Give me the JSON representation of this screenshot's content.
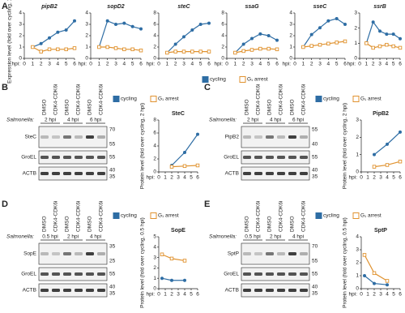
{
  "panels": [
    "A",
    "B",
    "C",
    "D",
    "E"
  ],
  "chart_data": [
    {
      "type": "line",
      "title": "pipB2",
      "ylabel": "Expression level (fold over cycling, 1 hpi)",
      "xlabel": "hpi:",
      "legend": "top",
      "x": [
        1,
        2,
        3,
        4,
        5,
        6
      ],
      "xlim": [
        0,
        6
      ],
      "xticks": [
        0,
        1,
        2,
        3,
        4,
        5,
        6
      ],
      "ylim": [
        0,
        4
      ],
      "yticks": [
        0,
        1,
        2,
        3,
        4
      ],
      "series": [
        {
          "name": "cycling",
          "color": "#2e6da4",
          "values": [
            1,
            1.3,
            1.8,
            2.3,
            2.5,
            3.3
          ]
        },
        {
          "name": "G₁ arrest",
          "color": "#e0922f",
          "values": [
            1,
            0.6,
            0.8,
            0.8,
            0.8,
            0.9
          ]
        }
      ]
    },
    {
      "type": "line",
      "title": "sopD2",
      "xlabel": "hpi:",
      "x": [
        1,
        2,
        3,
        4,
        5,
        6
      ],
      "xlim": [
        0,
        6
      ],
      "xticks": [
        0,
        1,
        2,
        3,
        4,
        5,
        6
      ],
      "ylim": [
        0,
        4
      ],
      "yticks": [
        0,
        1,
        2,
        3,
        4
      ],
      "series": [
        {
          "color": "#2e6da4",
          "values": [
            1,
            3.3,
            3.0,
            3.1,
            2.8,
            2.6
          ]
        },
        {
          "color": "#e0922f",
          "values": [
            1,
            1.0,
            0.9,
            0.8,
            0.8,
            0.7
          ]
        }
      ]
    },
    {
      "type": "line",
      "title": "steC",
      "xlabel": "hpi:",
      "x": [
        1,
        2,
        3,
        4,
        5,
        6
      ],
      "xlim": [
        0,
        6
      ],
      "xticks": [
        0,
        1,
        2,
        3,
        4,
        5,
        6
      ],
      "ylim": [
        0,
        8
      ],
      "yticks": [
        0,
        2,
        4,
        6,
        8
      ],
      "series": [
        {
          "color": "#2e6da4",
          "values": [
            1,
            2.5,
            3.8,
            5.0,
            6.0,
            6.2
          ]
        },
        {
          "color": "#e0922f",
          "values": [
            1,
            1.2,
            1.2,
            1.2,
            1.2,
            1.2
          ]
        }
      ]
    },
    {
      "type": "line",
      "title": "ssaG",
      "xlabel": "hpi:",
      "x": [
        1,
        2,
        3,
        4,
        5,
        6
      ],
      "xlim": [
        0,
        6
      ],
      "xticks": [
        0,
        1,
        2,
        3,
        4,
        5,
        6
      ],
      "ylim": [
        0,
        8
      ],
      "yticks": [
        0,
        2,
        4,
        6,
        8
      ],
      "series": [
        {
          "color": "#2e6da4",
          "values": [
            1,
            2.5,
            3.5,
            4.3,
            4.0,
            3.2
          ]
        },
        {
          "color": "#e0922f",
          "values": [
            1,
            1.3,
            1.5,
            1.7,
            1.7,
            1.6
          ]
        }
      ]
    },
    {
      "type": "line",
      "title": "sseC",
      "xlabel": "hpi:",
      "x": [
        1,
        2,
        3,
        4,
        5,
        6
      ],
      "xlim": [
        0,
        6
      ],
      "xticks": [
        0,
        1,
        2,
        3,
        4,
        5,
        6
      ],
      "ylim": [
        0,
        4
      ],
      "yticks": [
        0,
        1,
        2,
        3,
        4
      ],
      "series": [
        {
          "color": "#2e6da4",
          "values": [
            1,
            2.1,
            2.7,
            3.3,
            3.5,
            3.0
          ]
        },
        {
          "color": "#e0922f",
          "values": [
            1,
            1.1,
            1.2,
            1.3,
            1.4,
            1.5
          ]
        }
      ]
    },
    {
      "type": "line",
      "title": "ssrB",
      "xlabel": "hpi:",
      "x": [
        1,
        2,
        3,
        4,
        5,
        6
      ],
      "xlim": [
        0,
        6
      ],
      "xticks": [
        0,
        1,
        2,
        3,
        4,
        5,
        6
      ],
      "ylim": [
        0,
        3
      ],
      "yticks": [
        0,
        1,
        2,
        3
      ],
      "series": [
        {
          "color": "#2e6da4",
          "values": [
            1,
            2.4,
            1.8,
            1.6,
            1.6,
            1.3
          ]
        },
        {
          "color": "#e0922f",
          "values": [
            1,
            0.7,
            0.8,
            0.9,
            0.8,
            0.7
          ]
        }
      ]
    },
    {
      "type": "line",
      "title": "SteC",
      "ylabel": "Protein level (fold over cycling, 2 hpi)",
      "xlabel": "hpi:",
      "legend": "top",
      "x": [
        2,
        4,
        6
      ],
      "xlim": [
        0,
        6
      ],
      "xticks": [
        0,
        1,
        2,
        3,
        4,
        5,
        6
      ],
      "ylim": [
        0,
        8
      ],
      "yticks": [
        0,
        2,
        4,
        6,
        8
      ],
      "series": [
        {
          "name": "cycling",
          "color": "#2e6da4",
          "values": [
            1,
            3,
            5.8
          ]
        },
        {
          "name": "G₁ arrest",
          "color": "#e0922f",
          "values": [
            0.8,
            0.9,
            1.0
          ]
        }
      ]
    },
    {
      "type": "line",
      "title": "PipB2",
      "ylabel": "Protein level (fold over cycling, 2 hpi)",
      "xlabel": "hpi:",
      "legend": "top",
      "x": [
        2,
        4,
        6
      ],
      "xlim": [
        0,
        6
      ],
      "xticks": [
        0,
        1,
        2,
        3,
        4,
        5,
        6
      ],
      "ylim": [
        0,
        3
      ],
      "yticks": [
        0,
        1,
        2,
        3
      ],
      "series": [
        {
          "name": "cycling",
          "color": "#2e6da4",
          "values": [
            1,
            1.6,
            2.3
          ]
        },
        {
          "name": "G₁ arrest",
          "color": "#e0922f",
          "values": [
            0.3,
            0.4,
            0.6
          ]
        }
      ]
    },
    {
      "type": "line",
      "title": "SopE",
      "ylabel": "Protein level (fold over cycling, 0.5 hpi)",
      "xlabel": "hpi:",
      "legend": "top",
      "x": [
        0.5,
        2,
        4
      ],
      "xlim": [
        0,
        6
      ],
      "xticks": [
        0,
        1,
        2,
        3,
        4,
        5,
        6
      ],
      "ylim": [
        0,
        5
      ],
      "yticks": [
        0,
        1,
        2,
        3,
        4,
        5
      ],
      "series": [
        {
          "name": "cycling",
          "color": "#2e6da4",
          "values": [
            1,
            0.8,
            0.8
          ]
        },
        {
          "name": "G₁ arrest",
          "color": "#e0922f",
          "values": [
            3.3,
            2.9,
            2.7
          ]
        }
      ]
    },
    {
      "type": "line",
      "title": "SptP",
      "ylabel": "Protein level (fold over cycling, 0.5 hpi)",
      "xlabel": "hpi:",
      "legend": "top",
      "x": [
        0.5,
        2,
        4
      ],
      "xlim": [
        0,
        6
      ],
      "xticks": [
        0,
        1,
        2,
        3,
        4,
        5,
        6
      ],
      "ylim": [
        0,
        4
      ],
      "yticks": [
        0,
        1,
        2,
        3,
        4
      ],
      "series": [
        {
          "name": "cycling",
          "color": "#2e6da4",
          "values": [
            1,
            0.4,
            0.3
          ]
        },
        {
          "name": "G₁ arrest",
          "color": "#e0922f",
          "values": [
            2.6,
            1.2,
            0.6
          ]
        }
      ]
    }
  ],
  "blots": [
    {
      "strain": "Salmonella:",
      "timepoints": [
        "2 hpi",
        "4 hpi",
        "6 hpi"
      ],
      "lanes": [
        "DMSO",
        "CDK4-CDK6i",
        "DMSO",
        "CDK4-CDK6i",
        "DMSO",
        "CDK4-CDK6i"
      ],
      "rows": [
        {
          "name": "SteC",
          "markers": [
            "70",
            "55"
          ]
        },
        {
          "name": "GroEL",
          "markers": [
            "55"
          ]
        },
        {
          "name": "ACTB",
          "markers": [
            "40",
            "35"
          ]
        }
      ]
    },
    {
      "strain": "Salmonella:",
      "timepoints": [
        "2 hpi",
        "4 hpi",
        "6 hpi"
      ],
      "lanes": [
        "DMSO",
        "CDK4-CDK6i",
        "DMSO",
        "CDK4-CDK6i",
        "DMSO",
        "CDK4-CDK6i"
      ],
      "rows": [
        {
          "name": "PipB2",
          "markers": [
            "55",
            "40"
          ]
        },
        {
          "name": "GroEL",
          "markers": [
            "55"
          ]
        },
        {
          "name": "ACTB",
          "markers": [
            "40",
            "35"
          ]
        }
      ]
    },
    {
      "strain": "Salmonella:",
      "timepoints": [
        "0.5 hpi",
        "2 hpi",
        "4 hpi"
      ],
      "lanes": [
        "DMSO",
        "CDK4-CDK6i",
        "DMSO",
        "CDK4-CDK6i",
        "DMSO",
        "CDK4-CDK6i"
      ],
      "rows": [
        {
          "name": "SopE",
          "markers": [
            "35",
            "25"
          ]
        },
        {
          "name": "GroEL",
          "markers": [
            "55"
          ]
        },
        {
          "name": "ACTB",
          "markers": [
            "40",
            "35"
          ]
        }
      ]
    },
    {
      "strain": "Salmonella:",
      "timepoints": [
        "0.5 hpi",
        "2 hpi",
        "4 hpi"
      ],
      "lanes": [
        "DMSO",
        "CDK4-CDK6i",
        "DMSO",
        "CDK4-CDK6i",
        "DMSO",
        "CDK4-CDK6i"
      ],
      "rows": [
        {
          "name": "SptP",
          "markers": [
            "70",
            "55"
          ]
        },
        {
          "name": "GroEL",
          "markers": [
            "55"
          ]
        },
        {
          "name": "ACTB",
          "markers": [
            "40",
            "35"
          ]
        }
      ]
    }
  ]
}
